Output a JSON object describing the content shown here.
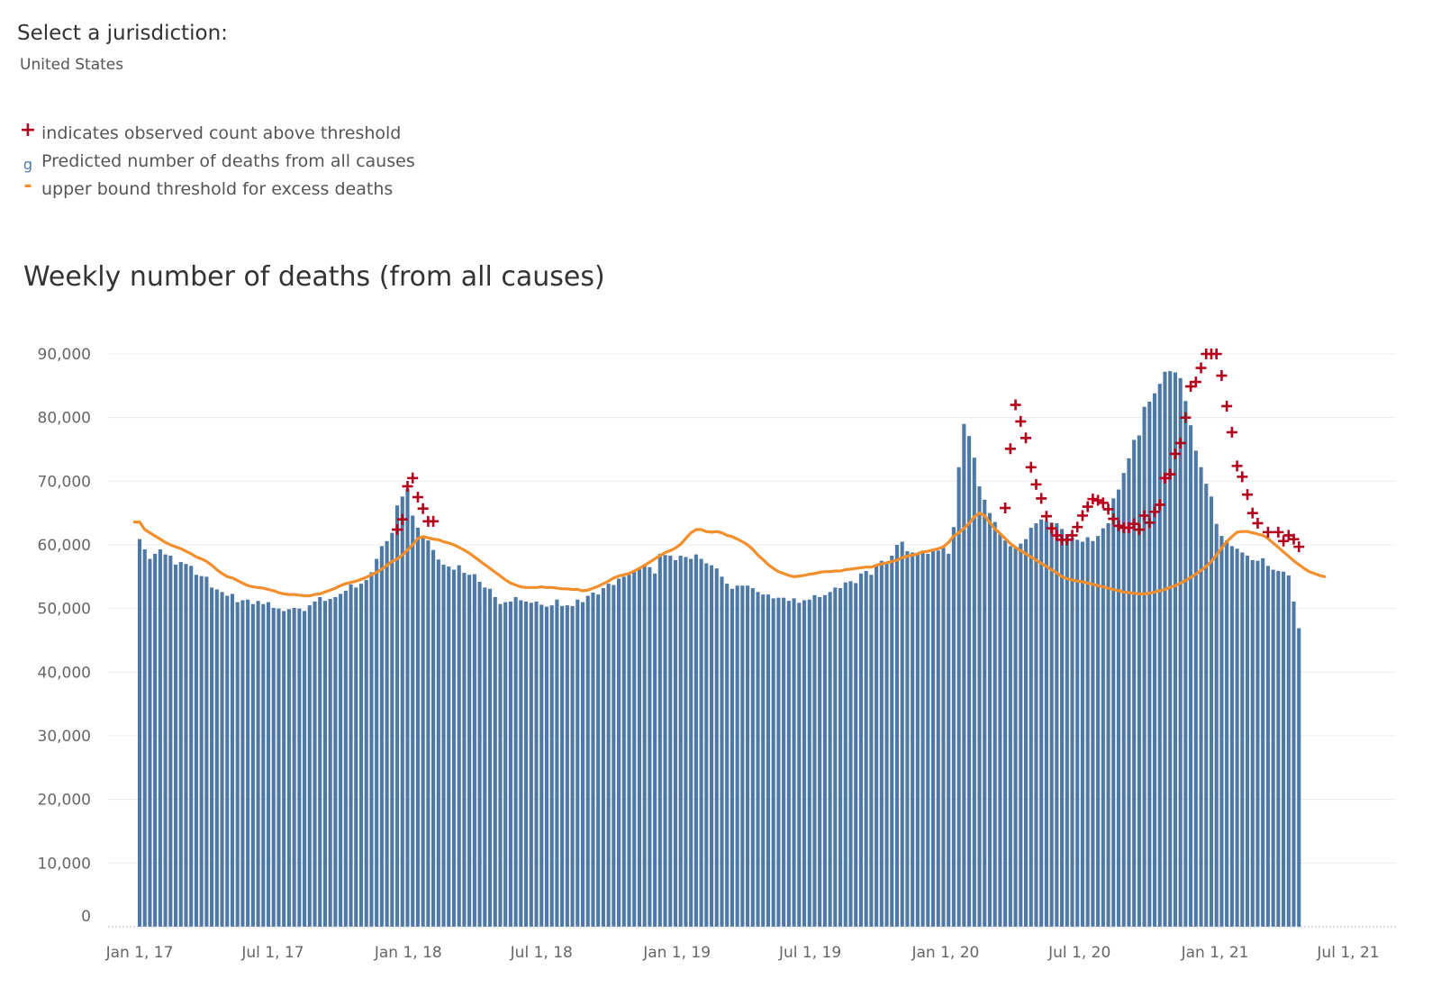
{
  "filter": {
    "title": "Select a jurisdiction:",
    "value": "United States"
  },
  "legend": [
    {
      "marker": "+",
      "marker_color": "#b3001b",
      "label": "indicates observed count above threshold"
    },
    {
      "marker": "g",
      "marker_color": "#4e79a7",
      "label": "Predicted number of deaths from all causes"
    },
    {
      "marker": "-",
      "marker_color": "#f28e2b",
      "label": "upper bound threshold for excess deaths"
    }
  ],
  "chart_data": {
    "type": "bar",
    "title": "Weekly number of deaths (from all causes)",
    "xlabel": "",
    "ylabel": "",
    "ylim": [
      0,
      90000
    ],
    "xlim": [
      "2016-12-27",
      "2021-07-01"
    ],
    "y_ticks": [
      "90,000",
      "80,000",
      "70,000",
      "60,000",
      "50,000",
      "40,000",
      "30,000",
      "20,000",
      "10,000",
      "0"
    ],
    "x_ticks": [
      {
        "date": "2017-01-01",
        "label": "Jan 1, 17"
      },
      {
        "date": "2017-07-01",
        "label": "Jul 1, 17"
      },
      {
        "date": "2018-01-01",
        "label": "Jan 1, 18"
      },
      {
        "date": "2018-07-01",
        "label": "Jul 1, 18"
      },
      {
        "date": "2019-01-01",
        "label": "Jan 1, 19"
      },
      {
        "date": "2019-07-01",
        "label": "Jul 1, 19"
      },
      {
        "date": "2020-01-01",
        "label": "Jan 1, 20"
      },
      {
        "date": "2020-07-01",
        "label": "Jul 1, 20"
      },
      {
        "date": "2021-01-01",
        "label": "Jan 1, 21"
      },
      {
        "date": "2021-07-01",
        "label": "Jul 1, 21"
      }
    ],
    "grid": true,
    "colors": {
      "bars": "#4e79a7",
      "threshold": "#f28e2b",
      "above": "#b3001b"
    },
    "series": [
      {
        "type": "bar",
        "x_start": "2017-01-01",
        "x_step_days": 7,
        "values": [
          60900,
          59300,
          57800,
          58600,
          59300,
          58500,
          58300,
          56900,
          57300,
          57000,
          56700,
          55300,
          55100,
          55000,
          53300,
          53000,
          52600,
          52000,
          52300,
          51000,
          51300,
          51400,
          50700,
          51200,
          50700,
          51000,
          50100,
          50000,
          49600,
          49900,
          50100,
          50000,
          49600,
          50500,
          51100,
          51800,
          51200,
          51500,
          51800,
          52300,
          52800,
          53800,
          53300,
          53900,
          54500,
          55700,
          57800,
          59800,
          60600,
          61900,
          66200,
          67600,
          68800,
          64600,
          62700,
          61200,
          60700,
          59200,
          57700,
          56900,
          56600,
          56100,
          56800,
          55600,
          55300,
          55400,
          54200,
          53300,
          53100,
          51800,
          50700,
          51000,
          51100,
          51800,
          51300,
          51100,
          50900,
          51100,
          50600,
          50300,
          50500,
          51400,
          50400,
          50500,
          50400,
          51400,
          51000,
          52000,
          52500,
          52200,
          53200,
          53900,
          53700,
          54700,
          55000,
          55300,
          55900,
          56400,
          56800,
          56500,
          55500,
          58600,
          58400,
          58300,
          57600,
          58300,
          58100,
          57800,
          58500,
          57800,
          57100,
          56800,
          56300,
          55000,
          53900,
          53100,
          53600,
          53600,
          53600,
          53200,
          52600,
          52200,
          52200,
          51600,
          51700,
          51700,
          51200,
          51600,
          50900,
          51300,
          51400,
          52100,
          51800,
          52100,
          52600,
          53300,
          53200,
          54100,
          54300,
          54000,
          55500,
          55900,
          55300,
          56700,
          57500,
          57300,
          58300,
          60000,
          60500,
          59000,
          58800,
          58600,
          59100,
          58600,
          59300,
          59100,
          59600,
          58600,
          62800,
          72200,
          79000,
          77100,
          73700,
          69200,
          67100,
          65000,
          63600,
          61700,
          60700,
          59800,
          59600,
          60200,
          60900,
          62700,
          63400,
          64000,
          63700,
          63500,
          63400,
          62500,
          61700,
          61100,
          60800,
          60500,
          61200,
          60600,
          61400,
          62600,
          63400,
          67300,
          68700,
          71300,
          73600,
          76500,
          77200,
          81700,
          82500,
          83800,
          85300,
          87200,
          87300,
          87100,
          86200,
          82600,
          78800,
          74800,
          72200,
          69600,
          67600,
          63300,
          61400,
          60700,
          59800,
          59400,
          58800,
          58300,
          57600,
          57500,
          57900,
          56700,
          56100,
          55900,
          55800,
          55200,
          51100,
          46900
        ]
      },
      {
        "type": "line",
        "name": "upper bound threshold",
        "x_start": "2016-12-25",
        "x_step_days": 7,
        "values": [
          63600,
          63600,
          62400,
          61900,
          61400,
          60900,
          60400,
          60000,
          59700,
          59400,
          59000,
          58600,
          58100,
          57800,
          57400,
          56800,
          56100,
          55500,
          55000,
          54800,
          54400,
          54000,
          53600,
          53400,
          53300,
          53200,
          53000,
          52800,
          52500,
          52300,
          52200,
          52200,
          52100,
          52000,
          52000,
          52200,
          52300,
          52600,
          52900,
          53200,
          53600,
          53900,
          54100,
          54300,
          54600,
          54900,
          55300,
          55700,
          56200,
          56800,
          57400,
          57800,
          58400,
          59200,
          60000,
          61000,
          61300,
          61100,
          60900,
          60800,
          60500,
          60300,
          60000,
          59600,
          59200,
          58700,
          58100,
          57500,
          56900,
          56300,
          55700,
          55100,
          54500,
          54000,
          53700,
          53400,
          53300,
          53300,
          53300,
          53400,
          53300,
          53300,
          53200,
          53100,
          53100,
          53000,
          53000,
          52800,
          52900,
          53200,
          53500,
          53900,
          54300,
          54800,
          55100,
          55300,
          55500,
          55900,
          56300,
          56800,
          57300,
          57800,
          58300,
          58800,
          59100,
          59500,
          60100,
          61000,
          61900,
          62400,
          62400,
          62100,
          62000,
          62100,
          61900,
          61500,
          61300,
          60900,
          60500,
          60000,
          59300,
          58400,
          57700,
          56900,
          56300,
          55800,
          55500,
          55200,
          55000,
          55100,
          55200,
          55400,
          55500,
          55700,
          55800,
          55800,
          55900,
          55900,
          56100,
          56200,
          56300,
          56400,
          56500,
          56500,
          56800,
          57000,
          57200,
          57400,
          57600,
          58000,
          58200,
          58400,
          58600,
          58900,
          59000,
          59200,
          59400,
          59700,
          60400,
          61400,
          61900,
          62600,
          63400,
          64400,
          65000,
          64600,
          63500,
          62500,
          61800,
          61000,
          60200,
          59600,
          59100,
          58600,
          58100,
          57600,
          57100,
          56600,
          56100,
          55600,
          55000,
          54700,
          54500,
          54300,
          54200,
          54000,
          53800,
          53600,
          53400,
          53200,
          53000,
          52800,
          52600,
          52500,
          52400,
          52300,
          52300,
          52400,
          52600,
          52800,
          53000,
          53300,
          53600,
          54000,
          54400,
          54900,
          55400,
          56000,
          56600,
          57400,
          58400,
          59500,
          60500,
          61300,
          62000,
          62100,
          62100,
          61900,
          61700,
          61500,
          61000,
          60300,
          59600,
          58900,
          58200,
          57500,
          56900,
          56300,
          55800,
          55500,
          55200,
          55000
        ]
      },
      {
        "type": "scatter",
        "name": "observed count above threshold",
        "points": [
          {
            "x": "2017-12-17",
            "y": 62400
          },
          {
            "x": "2017-12-24",
            "y": 64000
          },
          {
            "x": "2017-12-31",
            "y": 69200
          },
          {
            "x": "2018-01-07",
            "y": 70500
          },
          {
            "x": "2018-01-14",
            "y": 67500
          },
          {
            "x": "2018-01-21",
            "y": 65700
          },
          {
            "x": "2018-01-28",
            "y": 63700
          },
          {
            "x": "2018-02-04",
            "y": 63700
          },
          {
            "x": "2020-03-22",
            "y": 65800
          },
          {
            "x": "2020-03-29",
            "y": 75100
          },
          {
            "x": "2020-04-05",
            "y": 82000
          },
          {
            "x": "2020-04-12",
            "y": 79400
          },
          {
            "x": "2020-04-19",
            "y": 76800
          },
          {
            "x": "2020-04-26",
            "y": 72200
          },
          {
            "x": "2020-05-03",
            "y": 69500
          },
          {
            "x": "2020-05-10",
            "y": 67300
          },
          {
            "x": "2020-05-17",
            "y": 64500
          },
          {
            "x": "2020-05-24",
            "y": 62600
          },
          {
            "x": "2020-05-31",
            "y": 61500
          },
          {
            "x": "2020-06-07",
            "y": 60800
          },
          {
            "x": "2020-06-14",
            "y": 60800
          },
          {
            "x": "2020-06-21",
            "y": 61500
          },
          {
            "x": "2020-06-28",
            "y": 62800
          },
          {
            "x": "2020-07-05",
            "y": 64600
          },
          {
            "x": "2020-07-12",
            "y": 66000
          },
          {
            "x": "2020-07-19",
            "y": 67200
          },
          {
            "x": "2020-07-26",
            "y": 67000
          },
          {
            "x": "2020-08-02",
            "y": 66600
          },
          {
            "x": "2020-08-09",
            "y": 65600
          },
          {
            "x": "2020-08-16",
            "y": 64100
          },
          {
            "x": "2020-08-23",
            "y": 63000
          },
          {
            "x": "2020-08-30",
            "y": 62700
          },
          {
            "x": "2020-09-06",
            "y": 62700
          },
          {
            "x": "2020-09-13",
            "y": 63300
          },
          {
            "x": "2020-09-20",
            "y": 62400
          },
          {
            "x": "2020-09-27",
            "y": 64600
          },
          {
            "x": "2020-10-04",
            "y": 63500
          },
          {
            "x": "2020-10-11",
            "y": 65200
          },
          {
            "x": "2020-10-18",
            "y": 66300
          },
          {
            "x": "2020-10-25",
            "y": 70500
          },
          {
            "x": "2020-11-01",
            "y": 71100
          },
          {
            "x": "2020-11-08",
            "y": 74300
          },
          {
            "x": "2020-11-15",
            "y": 76000
          },
          {
            "x": "2020-11-22",
            "y": 80000
          },
          {
            "x": "2020-11-29",
            "y": 84900
          },
          {
            "x": "2020-12-06",
            "y": 85600
          },
          {
            "x": "2020-12-13",
            "y": 87800
          },
          {
            "x": "2020-12-20",
            "y": 90000
          },
          {
            "x": "2020-12-27",
            "y": 90000
          },
          {
            "x": "2021-01-03",
            "y": 90000
          },
          {
            "x": "2021-01-10",
            "y": 86600
          },
          {
            "x": "2021-01-17",
            "y": 81800
          },
          {
            "x": "2021-01-24",
            "y": 77700
          },
          {
            "x": "2021-01-31",
            "y": 72400
          },
          {
            "x": "2021-02-07",
            "y": 70700
          },
          {
            "x": "2021-02-14",
            "y": 67900
          },
          {
            "x": "2021-02-21",
            "y": 65000
          },
          {
            "x": "2021-02-28",
            "y": 63400
          },
          {
            "x": "2021-03-14",
            "y": 62000
          },
          {
            "x": "2021-03-28",
            "y": 62000
          },
          {
            "x": "2021-04-04",
            "y": 60600
          },
          {
            "x": "2021-04-11",
            "y": 61500
          },
          {
            "x": "2021-04-18",
            "y": 60900
          },
          {
            "x": "2021-04-25",
            "y": 59700
          }
        ]
      }
    ]
  }
}
